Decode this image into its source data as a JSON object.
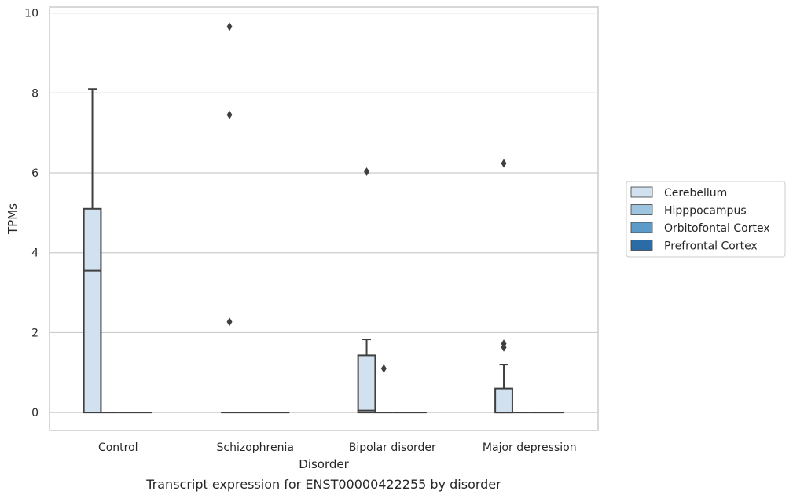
{
  "chart_data": {
    "type": "box",
    "title": "",
    "caption": "Transcript expression for ENST00000422255 by disorder",
    "xlabel": "Disorder",
    "ylabel": "TPMs",
    "ylim": [
      -0.45,
      10.15
    ],
    "yticks": [
      0,
      2,
      4,
      6,
      8,
      10
    ],
    "grid": "horizontal",
    "legend_position": "right",
    "categories": [
      "Control",
      "Schizophrenia",
      "Bipolar disorder",
      "Major depression"
    ],
    "series": [
      {
        "name": "Cerebellum",
        "color": "#d1e1f0",
        "boxes": [
          {
            "q1": 0,
            "median": 3.55,
            "q3": 5.1,
            "whisker_low": 0,
            "whisker_high": 8.1,
            "outliers": []
          },
          {
            "q1": 0,
            "median": 0,
            "q3": 0,
            "whisker_low": 0,
            "whisker_high": 0,
            "outliers": [
              9.66,
              7.45,
              2.27
            ]
          },
          {
            "q1": 0,
            "median": 0.05,
            "q3": 1.43,
            "whisker_low": 0,
            "whisker_high": 1.83,
            "outliers": [
              6.03
            ]
          },
          {
            "q1": 0,
            "median": 0,
            "q3": 0.6,
            "whisker_low": 0,
            "whisker_high": 1.2,
            "outliers": [
              6.24,
              1.72,
              1.63
            ]
          }
        ]
      },
      {
        "name": "Hipppocampus",
        "color": "#9ec5df",
        "boxes": [
          {
            "q1": 0,
            "median": 0,
            "q3": 0,
            "whisker_low": 0,
            "whisker_high": 0,
            "outliers": []
          },
          {
            "q1": 0,
            "median": 0,
            "q3": 0,
            "whisker_low": 0,
            "whisker_high": 0,
            "outliers": []
          },
          {
            "q1": 0,
            "median": 0,
            "q3": 0,
            "whisker_low": 0,
            "whisker_high": 0,
            "outliers": [
              1.1
            ]
          },
          {
            "q1": 0,
            "median": 0,
            "q3": 0,
            "whisker_low": 0,
            "whisker_high": 0,
            "outliers": []
          }
        ]
      },
      {
        "name": "Orbitofontal Cortex",
        "color": "#5c9bc8",
        "boxes": [
          {
            "q1": 0,
            "median": 0,
            "q3": 0,
            "whisker_low": 0,
            "whisker_high": 0,
            "outliers": []
          },
          {
            "q1": 0,
            "median": 0,
            "q3": 0,
            "whisker_low": 0,
            "whisker_high": 0,
            "outliers": []
          },
          {
            "q1": 0,
            "median": 0,
            "q3": 0,
            "whisker_low": 0,
            "whisker_high": 0,
            "outliers": []
          },
          {
            "q1": 0,
            "median": 0,
            "q3": 0,
            "whisker_low": 0,
            "whisker_high": 0,
            "outliers": []
          }
        ]
      },
      {
        "name": "Prefrontal Cortex",
        "color": "#2b6ba6",
        "boxes": [
          {
            "q1": 0,
            "median": 0,
            "q3": 0,
            "whisker_low": 0,
            "whisker_high": 0,
            "outliers": []
          },
          {
            "q1": 0,
            "median": 0,
            "q3": 0,
            "whisker_low": 0,
            "whisker_high": 0,
            "outliers": []
          },
          {
            "q1": 0,
            "median": 0,
            "q3": 0,
            "whisker_low": 0,
            "whisker_high": 0,
            "outliers": []
          },
          {
            "q1": 0,
            "median": 0,
            "q3": 0,
            "whisker_low": 0,
            "whisker_high": 0,
            "outliers": []
          }
        ]
      }
    ]
  }
}
